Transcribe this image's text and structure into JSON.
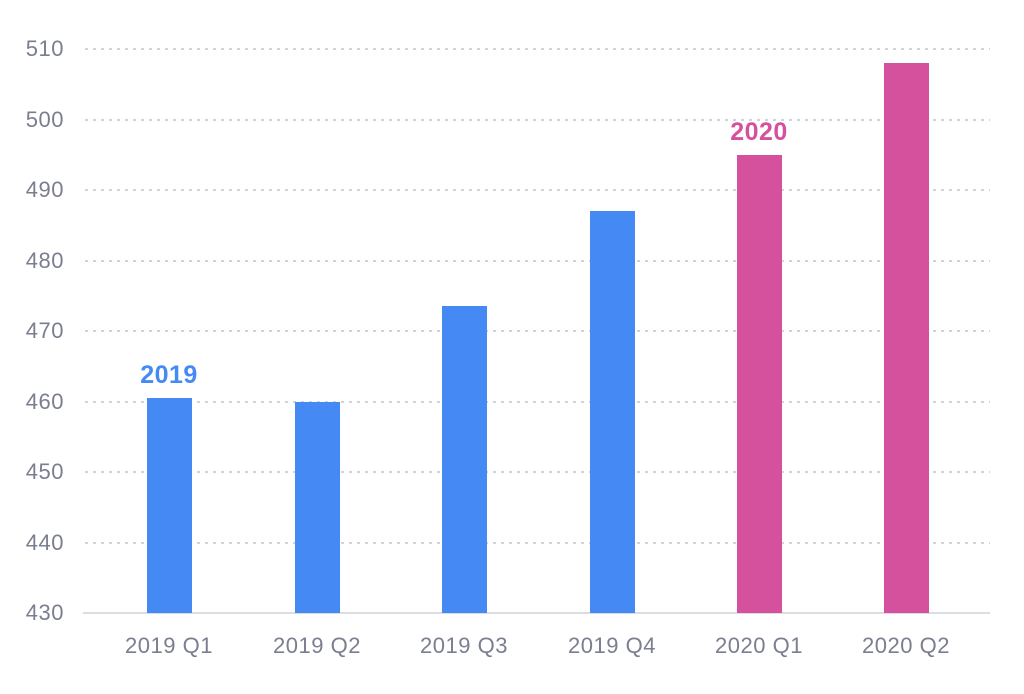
{
  "chart_data": {
    "type": "bar",
    "categories": [
      "2019 Q1",
      "2019 Q2",
      "2019 Q3",
      "2019 Q4",
      "2020 Q1",
      "2020 Q2"
    ],
    "values": [
      460.5,
      460,
      473.5,
      487,
      495,
      508
    ],
    "series_groups": [
      {
        "name": "2019",
        "color": "#4589F5",
        "category_indices": [
          0,
          1,
          2,
          3
        ],
        "label_above_index": 0
      },
      {
        "name": "2020",
        "color": "#D5519E",
        "category_indices": [
          4,
          5
        ],
        "label_above_index": 4
      }
    ],
    "title": "",
    "xlabel": "",
    "ylabel": "",
    "ylim": [
      430,
      510
    ],
    "yticks": [
      430,
      440,
      450,
      460,
      470,
      480,
      490,
      500,
      510
    ],
    "grid": "horizontal-dotted",
    "legend_position": "none-inline-year-labels-above-bars"
  },
  "colors": {
    "bar_2019": "#4589F5",
    "bar_2020": "#D5519E",
    "annotation_2019": "#4589F5",
    "annotation_2020": "#D5519E",
    "axis_label": "#7A7E8F",
    "gridline_dotted": "#D0D3DB",
    "baseline": "#DBDDE3",
    "background": "#FFFFFF"
  }
}
